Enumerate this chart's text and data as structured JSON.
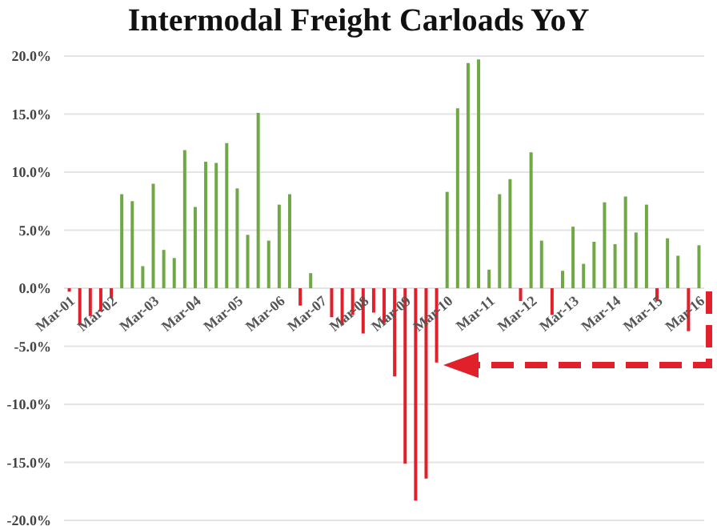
{
  "chart_data": {
    "type": "bar",
    "title": "Intermodal Freight Carloads YoY",
    "categories": [
      "Mar-01",
      null,
      null,
      null,
      "Mar-02",
      null,
      null,
      null,
      "Mar-03",
      null,
      null,
      null,
      "Mar-04",
      null,
      null,
      null,
      "Mar-05",
      null,
      null,
      null,
      "Mar-06",
      null,
      null,
      null,
      "Mar-07",
      null,
      null,
      null,
      "Mar-08",
      null,
      null,
      null,
      "Mar-09",
      null,
      null,
      null,
      "Mar-10",
      null,
      null,
      null,
      "Mar-11",
      null,
      null,
      null,
      "Mar-12",
      null,
      null,
      null,
      "Mar-13",
      null,
      null,
      null,
      "Mar-14",
      null,
      null,
      null,
      "Mar-15",
      null,
      null,
      null,
      "Mar-16"
    ],
    "values": [
      -0.3,
      -3.2,
      -2.4,
      -2.0,
      -0.8,
      8.1,
      7.5,
      1.9,
      9.0,
      3.3,
      2.6,
      11.9,
      7.0,
      10.9,
      10.8,
      12.5,
      8.6,
      4.6,
      15.1,
      4.1,
      7.2,
      8.1,
      -1.5,
      1.3,
      0,
      -2.5,
      -3.2,
      -2.3,
      -3.9,
      -2.1,
      -3.0,
      -7.6,
      -15.1,
      -18.3,
      -16.4,
      -6.4,
      8.3,
      15.5,
      19.4,
      19.7,
      1.6,
      8.1,
      9.4,
      -1.1,
      11.7,
      4.1,
      -2.3,
      1.5,
      5.3,
      2.1,
      4.0,
      7.4,
      3.8,
      7.9,
      4.8,
      7.2,
      -1.1,
      4.3,
      2.8,
      -3.7,
      3.7
    ],
    "colors": [
      "#e0202a",
      "#e0202a",
      "#e0202a",
      "#e0202a",
      "#e0202a",
      "#70a845",
      "#70a845",
      "#70a845",
      "#70a845",
      "#70a845",
      "#70a845",
      "#70a845",
      "#70a845",
      "#70a845",
      "#70a845",
      "#70a845",
      "#70a845",
      "#70a845",
      "#70a845",
      "#70a845",
      "#70a845",
      "#70a845",
      "#e0202a",
      "#70a845",
      "#70a845",
      "#e0202a",
      "#e0202a",
      "#e0202a",
      "#e0202a",
      "#e0202a",
      "#e0202a",
      "#e0202a",
      "#e0202a",
      "#e0202a",
      "#e0202a",
      "#e0202a",
      "#70a845",
      "#70a845",
      "#70a845",
      "#70a845",
      "#70a845",
      "#70a845",
      "#70a845",
      "#e0202a",
      "#70a845",
      "#70a845",
      "#e0202a",
      "#70a845",
      "#70a845",
      "#70a845",
      "#70a845",
      "#70a845",
      "#70a845",
      "#70a845",
      "#70a845",
      "#70a845",
      "#e0202a",
      "#70a845",
      "#70a845",
      "#e0202a",
      "#70a845"
    ],
    "ylim": [
      -20,
      20
    ],
    "yticks": [
      {
        "value": -20,
        "label": "-20.0%"
      },
      {
        "value": -15,
        "label": "-15.0%"
      },
      {
        "value": -10,
        "label": "-10.0%"
      },
      {
        "value": -5,
        "label": "-5.0%"
      },
      {
        "value": 0,
        "label": "0.0%"
      },
      {
        "value": 5,
        "label": "5.0%"
      },
      {
        "value": 10,
        "label": "10.0%"
      },
      {
        "value": 15,
        "label": "15.0%"
      },
      {
        "value": 20,
        "label": "20.0%"
      }
    ],
    "grid": "y"
  }
}
